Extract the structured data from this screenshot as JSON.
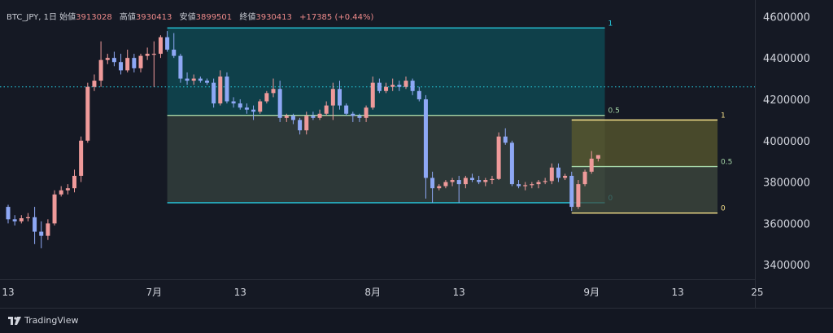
{
  "legend": {
    "symbol": "BTC_JPY, 1日",
    "open_label": "始値",
    "open": "3913028",
    "high_label": "高値",
    "high": "3930413",
    "low_label": "安値",
    "low": "3899501",
    "close_label": "終値",
    "close": "3930413",
    "change": "+17385 (+0.44%)"
  },
  "brand": {
    "name": "TradingView"
  },
  "chart_data": {
    "type": "candlestick",
    "symbol": "BTC_JPY",
    "interval": "1日",
    "y_ticks": [
      3400000,
      3600000,
      3800000,
      4000000,
      4200000,
      4400000,
      4600000
    ],
    "ylim": [
      3330000,
      4680000
    ],
    "x_tick_labels": [
      "13",
      "7月",
      "13",
      "8月",
      "13",
      "9月",
      "13",
      "25"
    ],
    "x_tick_index": [
      0,
      22,
      35,
      55,
      68,
      88,
      101,
      113
    ],
    "dotted_price_line": 4260000,
    "colors": {
      "up": "#ef9a9a",
      "down": "#8ea8f5",
      "background": "#151924"
    },
    "fib_retracements": [
      {
        "x_from": 24,
        "x_to": 90,
        "price_1": 4545000,
        "price_0": 3700000,
        "levels": [
          {
            "label": "1",
            "level": 1
          },
          {
            "label": "0.5",
            "level": 0.5
          },
          {
            "label": "0",
            "level": 0
          }
        ],
        "line_color": "#26c6da",
        "mid_color": "#a5d6a7",
        "fill_upper": "#0d4d57",
        "fill_lower": "#36433f"
      },
      {
        "x_from": 85,
        "x_to": 107,
        "price_1": 4100000,
        "price_0": 3650000,
        "levels": [
          {
            "label": "1",
            "level": 1
          },
          {
            "label": "0.5",
            "level": 0.5
          },
          {
            "label": "0",
            "level": 0
          }
        ],
        "line_color": "#f5e08a",
        "mid_color": "#a5d6a7",
        "fill_upper": "#5a5a2e",
        "fill_lower": "#3f4a3e"
      }
    ],
    "candles": [
      [
        3680000,
        3690000,
        3600000,
        3620000
      ],
      [
        3620000,
        3640000,
        3590000,
        3610000
      ],
      [
        3610000,
        3640000,
        3600000,
        3625000
      ],
      [
        3625000,
        3650000,
        3610000,
        3630000
      ],
      [
        3630000,
        3680000,
        3500000,
        3560000
      ],
      [
        3560000,
        3610000,
        3480000,
        3540000
      ],
      [
        3540000,
        3620000,
        3520000,
        3600000
      ],
      [
        3600000,
        3760000,
        3590000,
        3740000
      ],
      [
        3740000,
        3780000,
        3730000,
        3760000
      ],
      [
        3760000,
        3790000,
        3740000,
        3770000
      ],
      [
        3770000,
        3860000,
        3750000,
        3830000
      ],
      [
        3830000,
        4020000,
        3800000,
        4000000
      ],
      [
        4000000,
        4280000,
        3990000,
        4260000
      ],
      [
        4260000,
        4320000,
        4240000,
        4290000
      ],
      [
        4290000,
        4480000,
        4260000,
        4390000
      ],
      [
        4390000,
        4420000,
        4370000,
        4400000
      ],
      [
        4400000,
        4430000,
        4360000,
        4380000
      ],
      [
        4380000,
        4420000,
        4320000,
        4340000
      ],
      [
        4340000,
        4440000,
        4330000,
        4400000
      ],
      [
        4400000,
        4420000,
        4330000,
        4350000
      ],
      [
        4350000,
        4420000,
        4330000,
        4410000
      ],
      [
        4410000,
        4450000,
        4390000,
        4420000
      ],
      [
        4420000,
        4480000,
        4260000,
        4420000
      ],
      [
        4420000,
        4510000,
        4400000,
        4500000
      ],
      [
        4500000,
        4530000,
        4430000,
        4440000
      ],
      [
        4440000,
        4520000,
        4400000,
        4410000
      ],
      [
        4410000,
        4420000,
        4280000,
        4300000
      ],
      [
        4300000,
        4330000,
        4270000,
        4290000
      ],
      [
        4290000,
        4320000,
        4270000,
        4300000
      ],
      [
        4300000,
        4310000,
        4280000,
        4290000
      ],
      [
        4290000,
        4300000,
        4270000,
        4280000
      ],
      [
        4280000,
        4300000,
        4160000,
        4180000
      ],
      [
        4180000,
        4340000,
        4170000,
        4310000
      ],
      [
        4310000,
        4330000,
        4180000,
        4190000
      ],
      [
        4190000,
        4210000,
        4160000,
        4180000
      ],
      [
        4180000,
        4200000,
        4150000,
        4160000
      ],
      [
        4160000,
        4180000,
        4130000,
        4150000
      ],
      [
        4150000,
        4170000,
        4100000,
        4140000
      ],
      [
        4140000,
        4200000,
        4130000,
        4190000
      ],
      [
        4190000,
        4240000,
        4180000,
        4230000
      ],
      [
        4230000,
        4300000,
        4210000,
        4250000
      ],
      [
        4250000,
        4290000,
        4090000,
        4110000
      ],
      [
        4110000,
        4130000,
        4090000,
        4120000
      ],
      [
        4120000,
        4130000,
        4080000,
        4100000
      ],
      [
        4100000,
        4110000,
        4030000,
        4050000
      ],
      [
        4050000,
        4140000,
        4030000,
        4120000
      ],
      [
        4120000,
        4140000,
        4100000,
        4110000
      ],
      [
        4110000,
        4150000,
        4100000,
        4130000
      ],
      [
        4130000,
        4190000,
        4120000,
        4170000
      ],
      [
        4170000,
        4280000,
        4100000,
        4250000
      ],
      [
        4250000,
        4290000,
        4150000,
        4170000
      ],
      [
        4170000,
        4180000,
        4120000,
        4130000
      ],
      [
        4130000,
        4140000,
        4090000,
        4120000
      ],
      [
        4120000,
        4130000,
        4090000,
        4110000
      ],
      [
        4110000,
        4170000,
        4090000,
        4160000
      ],
      [
        4160000,
        4310000,
        4150000,
        4280000
      ],
      [
        4280000,
        4300000,
        4230000,
        4240000
      ],
      [
        4240000,
        4280000,
        4230000,
        4260000
      ],
      [
        4260000,
        4300000,
        4240000,
        4270000
      ],
      [
        4270000,
        4290000,
        4240000,
        4260000
      ],
      [
        4260000,
        4310000,
        4250000,
        4290000
      ],
      [
        4290000,
        4300000,
        4220000,
        4240000
      ],
      [
        4240000,
        4260000,
        4190000,
        4200000
      ],
      [
        4200000,
        4220000,
        3720000,
        3820000
      ],
      [
        3820000,
        3850000,
        3700000,
        3770000
      ],
      [
        3770000,
        3790000,
        3760000,
        3780000
      ],
      [
        3780000,
        3810000,
        3770000,
        3800000
      ],
      [
        3800000,
        3820000,
        3780000,
        3810000
      ],
      [
        3810000,
        3830000,
        3700000,
        3790000
      ],
      [
        3790000,
        3830000,
        3770000,
        3820000
      ],
      [
        3820000,
        3840000,
        3800000,
        3810000
      ],
      [
        3810000,
        3830000,
        3790000,
        3800000
      ],
      [
        3800000,
        3820000,
        3780000,
        3810000
      ],
      [
        3810000,
        3830000,
        3790000,
        3815000
      ],
      [
        3815000,
        4040000,
        3810000,
        4020000
      ],
      [
        4020000,
        4060000,
        3980000,
        3990000
      ],
      [
        3990000,
        4000000,
        3780000,
        3790000
      ],
      [
        3790000,
        3810000,
        3770000,
        3780000
      ],
      [
        3780000,
        3800000,
        3760000,
        3785000
      ],
      [
        3785000,
        3800000,
        3770000,
        3790000
      ],
      [
        3790000,
        3810000,
        3770000,
        3800000
      ],
      [
        3800000,
        3820000,
        3790000,
        3805000
      ],
      [
        3805000,
        3890000,
        3790000,
        3870000
      ],
      [
        3870000,
        3890000,
        3800000,
        3820000
      ],
      [
        3820000,
        3840000,
        3810000,
        3830000
      ],
      [
        3830000,
        3850000,
        3660000,
        3680000
      ],
      [
        3680000,
        3810000,
        3670000,
        3790000
      ],
      [
        3790000,
        3860000,
        3780000,
        3850000
      ],
      [
        3850000,
        3950000,
        3840000,
        3913028
      ],
      [
        3913028,
        3930413,
        3899501,
        3930413
      ]
    ]
  }
}
